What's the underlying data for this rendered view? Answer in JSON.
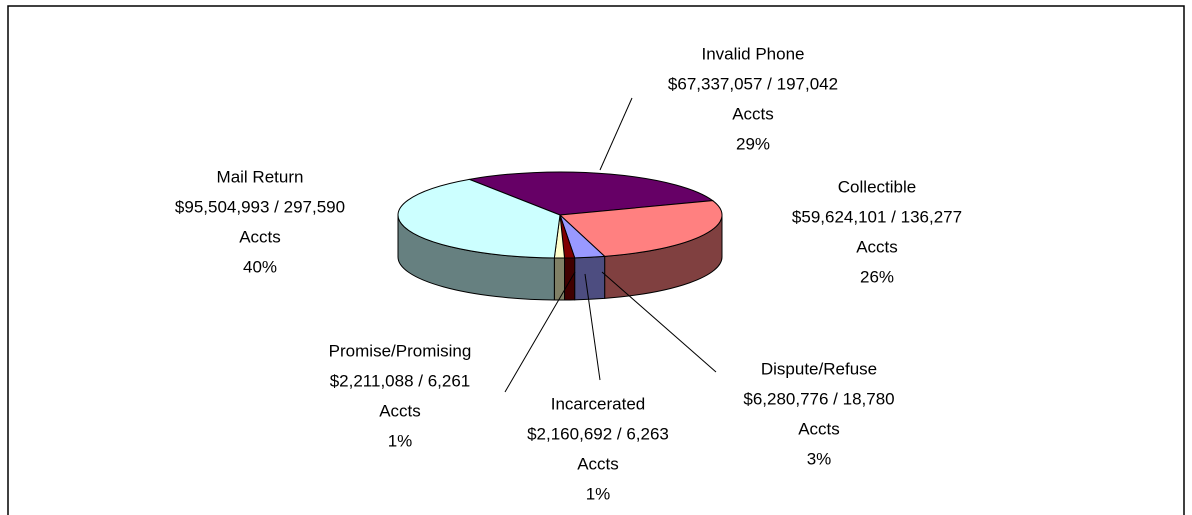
{
  "chart_data": {
    "type": "pie",
    "categories": [
      "Invalid Phone",
      "Collectible",
      "Dispute/Refuse",
      "Incarcerated",
      "Promise/Promising",
      "Mail Return"
    ],
    "details": [
      "$67,337,057 / 197,042",
      "$59,624,101 / 136,277",
      "$6,280,776 / 18,780",
      "$2,160,692 / 6,263",
      "$2,211,088 / 6,261",
      "$95,504,993 / 297,590"
    ],
    "count_unit": "Accts",
    "values": [
      29,
      26,
      3,
      1,
      1,
      40
    ],
    "value_labels": [
      "29%",
      "26%",
      "3%",
      "1%",
      "1%",
      "40%"
    ],
    "colors": [
      "#660066",
      "#ff8080",
      "#9999ff",
      "#800000",
      "#ffffcc",
      "#ccffff"
    ]
  }
}
